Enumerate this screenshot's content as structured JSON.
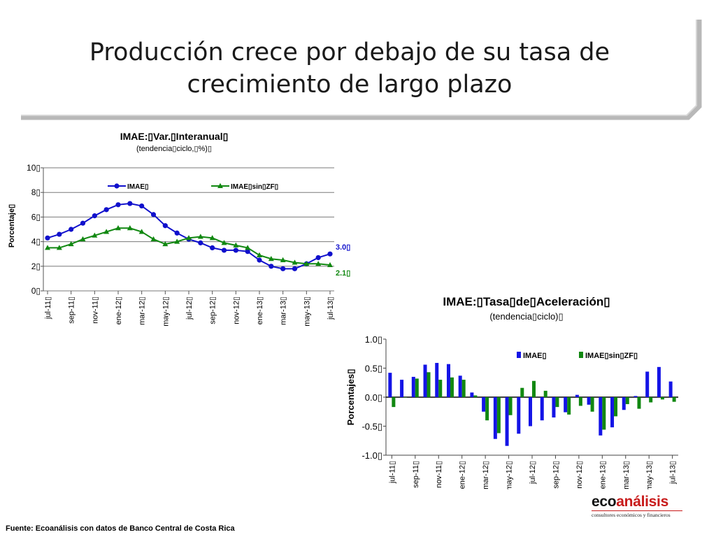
{
  "slide": {
    "title_line1": "Producción crece por debajo de su tasa de",
    "title_line2": "crecimiento de largo plazo",
    "source": "Fuente: Ecoanálisis con datos de Banco  Central de Costa Rica",
    "logo_part1": "eco",
    "logo_part2": "análisis",
    "logo_tagline": "consultores económicos y financieros"
  },
  "chart_data": [
    {
      "type": "line",
      "title": "IMAE:▯Var.▯Interanual▯",
      "subtitle": "(tendencia▯ciclo,▯%)▯",
      "ylabel": "Porcentaje▯",
      "xlabel": "",
      "ylim": [
        0,
        10
      ],
      "yticks": [
        0,
        2,
        4,
        6,
        8,
        10
      ],
      "ytick_labels": [
        "0▯",
        "2▯",
        "4▯",
        "6▯",
        "8▯",
        "10▯"
      ],
      "grid": true,
      "legend_position": "top",
      "categories": [
        "jul-11",
        "ago-11",
        "sep-11",
        "oct-11",
        "nov-11",
        "dic-11",
        "ene-12",
        "feb-12",
        "mar-12",
        "abr-12",
        "may-12",
        "jun-12",
        "jul-12",
        "ago-12",
        "sep-12",
        "oct-12",
        "nov-12",
        "dic-12",
        "ene-13",
        "feb-13",
        "mar-13",
        "abr-13",
        "may-13",
        "jun-13",
        "jul-13"
      ],
      "tick_labels": [
        "jul-11▯",
        "sep-11▯",
        "nov-11▯",
        "ene-12▯",
        "mar-12▯",
        "may-12▯",
        "jul-12▯",
        "sep-12▯",
        "nov-12▯",
        "ene-13▯",
        "mar-13▯",
        "may-13▯",
        "jul-13▯"
      ],
      "series": [
        {
          "name": "IMAE▯",
          "color": "#1010cc",
          "marker": "circle",
          "values": [
            4.3,
            4.6,
            5.0,
            5.5,
            6.1,
            6.6,
            7.0,
            7.1,
            6.9,
            6.2,
            5.3,
            4.7,
            4.2,
            3.9,
            3.5,
            3.3,
            3.3,
            3.2,
            2.5,
            2.0,
            1.8,
            1.8,
            2.2,
            2.7,
            3.0
          ],
          "end_label": "3.0▯"
        },
        {
          "name": "IMAE▯sin▯ZF▯",
          "color": "#118811",
          "marker": "triangle",
          "values": [
            3.5,
            3.5,
            3.8,
            4.2,
            4.5,
            4.8,
            5.1,
            5.1,
            4.8,
            4.2,
            3.8,
            4.0,
            4.3,
            4.4,
            4.3,
            3.9,
            3.7,
            3.5,
            2.9,
            2.6,
            2.5,
            2.3,
            2.2,
            2.2,
            2.1
          ],
          "end_label": "2.1▯"
        }
      ]
    },
    {
      "type": "bar",
      "title": "IMAE:▯Tasa▯de▯Aceleración▯",
      "subtitle": "(tendencia▯ciclo)▯",
      "ylabel": "Porcentajes▯",
      "xlabel": "",
      "ylim": [
        -1.0,
        1.0
      ],
      "yticks": [
        -1.0,
        -0.5,
        0.0,
        0.5,
        1.0
      ],
      "ytick_labels": [
        "-1.0▯",
        "-0.5▯",
        "0.0▯",
        "0.5▯",
        "1.0▯"
      ],
      "grid": false,
      "legend_position": "top-right",
      "categories": [
        "jul-11",
        "ago-11",
        "sep-11",
        "oct-11",
        "nov-11",
        "dic-11",
        "ene-12",
        "feb-12",
        "mar-12",
        "abr-12",
        "may-12",
        "jun-12",
        "jul-12",
        "ago-12",
        "sep-12",
        "oct-12",
        "nov-12",
        "dic-12",
        "ene-13",
        "feb-13",
        "mar-13",
        "abr-13",
        "may-13",
        "jun-13",
        "jul-13"
      ],
      "tick_labels": [
        "jul-11▯",
        "sep-11▯",
        "nov-11▯",
        "ene-12▯",
        "mar-12▯",
        "may-12▯",
        "jul-12▯",
        "sep-12▯",
        "nov-12▯",
        "ene-13▯",
        "mar-13▯",
        "may-13▯",
        "jul-13▯"
      ],
      "series": [
        {
          "name": "IMAE▯",
          "color": "#1414e6",
          "values": [
            0.42,
            0.3,
            0.35,
            0.56,
            0.59,
            0.57,
            0.37,
            0.08,
            -0.25,
            -0.72,
            -0.84,
            -0.63,
            -0.5,
            -0.4,
            -0.35,
            -0.26,
            0.04,
            -0.13,
            -0.66,
            -0.52,
            -0.22,
            0.02,
            0.44,
            0.52,
            0.27
          ]
        },
        {
          "name": "IMAE▯sin▯ZF▯",
          "color": "#118811",
          "values": [
            -0.17,
            0.0,
            0.32,
            0.43,
            0.3,
            0.34,
            0.3,
            0.03,
            -0.4,
            -0.62,
            -0.31,
            0.16,
            0.28,
            0.11,
            -0.17,
            -0.3,
            -0.15,
            -0.25,
            -0.56,
            -0.33,
            -0.12,
            -0.2,
            -0.09,
            -0.04,
            -0.08
          ]
        }
      ]
    }
  ]
}
